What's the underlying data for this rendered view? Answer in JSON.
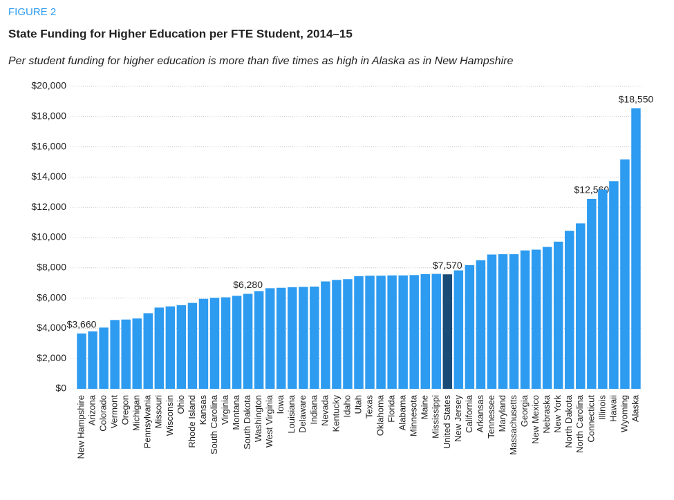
{
  "chart_data": {
    "type": "bar",
    "figure_label": "FIGURE 2",
    "title": "State Funding for Higher Education per FTE Student, 2014–15",
    "subtitle": "Per student funding for higher education is more than five times as high in Alaska as in New Hampshire",
    "categories": [
      "New Hampshire",
      "Arizona",
      "Colorado",
      "Vermont",
      "Oregon",
      "Michigan",
      "Pennsylvania",
      "Missouri",
      "Wisconsin",
      "Ohio",
      "Rhode Island",
      "Kansas",
      "South Carolina",
      "Virginia",
      "Montana",
      "South Dakota",
      "Washington",
      "West Virginia",
      "Iowa",
      "Louisiana",
      "Delaware",
      "Indiana",
      "Nevada",
      "Kentucky",
      "Idaho",
      "Utah",
      "Texas",
      "Oklahoma",
      "Florida",
      "Alabama",
      "Minnesota",
      "Maine",
      "Mississippi",
      "United States",
      "New Jersey",
      "California",
      "Arkansas",
      "Tennessee",
      "Maryland",
      "Massachusetts",
      "Georgia",
      "New Mexico",
      "Nebraska",
      "New York",
      "North Dakota",
      "North Carolina",
      "Connecticut",
      "Illinois",
      "Hawaii",
      "Wyoming",
      "Alaska"
    ],
    "values": [
      3660,
      3800,
      4050,
      4550,
      4580,
      4650,
      5000,
      5370,
      5450,
      5530,
      5680,
      5950,
      6020,
      6050,
      6150,
      6280,
      6460,
      6650,
      6680,
      6720,
      6740,
      6760,
      7100,
      7200,
      7250,
      7450,
      7480,
      7480,
      7500,
      7500,
      7520,
      7580,
      7600,
      7570,
      7830,
      8180,
      8500,
      8880,
      8900,
      8900,
      9150,
      9200,
      9380,
      9730,
      10450,
      10940,
      12560,
      13170,
      13730,
      15170,
      18550
    ],
    "value_labels": [
      "$3,660",
      null,
      null,
      null,
      null,
      null,
      null,
      null,
      null,
      null,
      null,
      null,
      null,
      null,
      null,
      "$6,280",
      null,
      null,
      null,
      null,
      null,
      null,
      null,
      null,
      null,
      null,
      null,
      null,
      null,
      null,
      null,
      null,
      null,
      "$7,570",
      null,
      null,
      null,
      null,
      null,
      null,
      null,
      null,
      null,
      null,
      null,
      null,
      "$12,560",
      null,
      null,
      null,
      "$18,550"
    ],
    "color": "#2d9bf0",
    "highlight": {
      "category": "United States",
      "color": "#1a4c78"
    },
    "ylim": [
      0,
      20000
    ],
    "yticks": [
      {
        "value": 0,
        "label": "$0"
      },
      {
        "value": 2000,
        "label": "$2,000"
      },
      {
        "value": 4000,
        "label": "$4,000"
      },
      {
        "value": 6000,
        "label": "$6,000"
      },
      {
        "value": 8000,
        "label": "$8,000"
      },
      {
        "value": 10000,
        "label": "$10,000"
      },
      {
        "value": 12000,
        "label": "$12,000"
      },
      {
        "value": 14000,
        "label": "$14,000"
      },
      {
        "value": 16000,
        "label": "$16,000"
      },
      {
        "value": 18000,
        "label": "$18,000"
      },
      {
        "value": 20000,
        "label": "$20,000"
      }
    ],
    "grid": true
  }
}
